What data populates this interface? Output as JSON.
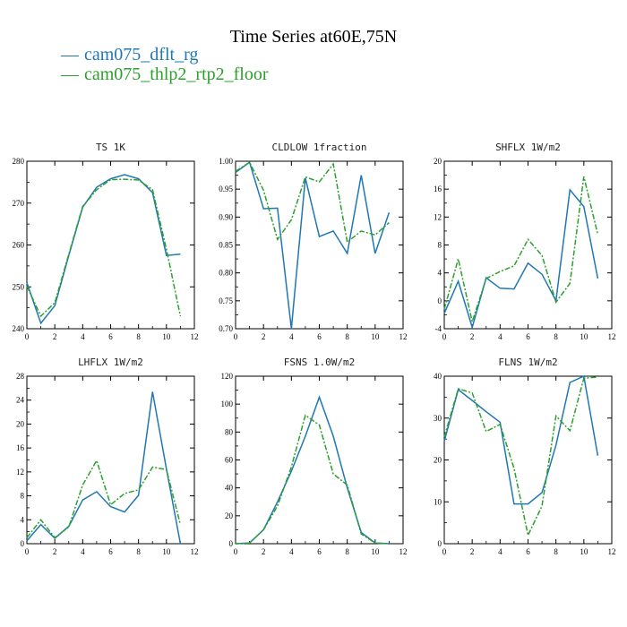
{
  "title": "Time Series at60E,75N",
  "legend": [
    {
      "label": "cam075_dflt_rg",
      "color": "#1f77b4"
    },
    {
      "label": "cam075_thlp2_rtp2_floor",
      "color": "#2ca02c"
    }
  ],
  "chart_data": [
    {
      "type": "line",
      "title": "TS  1K",
      "x": [
        0,
        1,
        2,
        3,
        4,
        5,
        6,
        7,
        8,
        9,
        10,
        11
      ],
      "xlim": [
        0,
        12
      ],
      "ylim": [
        240,
        280
      ],
      "xticks": [
        0,
        2,
        4,
        6,
        8,
        10,
        12
      ],
      "yticks": [
        240,
        250,
        260,
        270,
        280
      ],
      "series": [
        {
          "name": "cam075_dflt_rg",
          "values": [
            251,
            241.3,
            245.5,
            257.5,
            269,
            273.8,
            275.8,
            276.8,
            275.8,
            272.5,
            257.5,
            257.8
          ]
        },
        {
          "name": "cam075_thlp2_rtp2_floor",
          "values": [
            250.2,
            243,
            246.2,
            257.8,
            269.2,
            273.2,
            275.6,
            275.7,
            275.5,
            273.2,
            259,
            243
          ]
        }
      ]
    },
    {
      "type": "line",
      "title": "CLDLOW  1fraction",
      "x": [
        0,
        1,
        2,
        3,
        4,
        5,
        6,
        7,
        8,
        9,
        10,
        11
      ],
      "xlim": [
        0,
        12
      ],
      "ylim": [
        0.7,
        1.0
      ],
      "xticks": [
        0,
        2,
        4,
        6,
        8,
        10,
        12
      ],
      "yticks": [
        "0.70",
        "0.75",
        "0.80",
        "0.85",
        "0.90",
        "0.95",
        "1.00"
      ],
      "series": [
        {
          "name": "cam075_dflt_rg",
          "values": [
            0.98,
            0.998,
            0.915,
            0.916,
            0.7,
            0.97,
            0.865,
            0.875,
            0.835,
            0.975,
            0.835,
            0.908
          ]
        },
        {
          "name": "cam075_thlp2_rtp2_floor",
          "values": [
            0.982,
            0.998,
            0.948,
            0.86,
            0.895,
            0.972,
            0.963,
            0.995,
            0.855,
            0.875,
            0.868,
            0.89
          ]
        }
      ]
    },
    {
      "type": "line",
      "title": "SHFLX  1W/m2",
      "x": [
        0,
        1,
        2,
        3,
        4,
        5,
        6,
        7,
        8,
        9,
        10,
        11
      ],
      "xlim": [
        0,
        12
      ],
      "ylim": [
        -4,
        20
      ],
      "xticks": [
        0,
        2,
        4,
        6,
        8,
        10,
        12
      ],
      "yticks": [
        -4,
        0,
        4,
        8,
        12,
        16,
        20
      ],
      "series": [
        {
          "name": "cam075_dflt_rg",
          "values": [
            -1.8,
            2.8,
            -3.8,
            3.3,
            1.8,
            1.7,
            5.4,
            3.8,
            0,
            15.9,
            13.5,
            3.2
          ]
        },
        {
          "name": "cam075_thlp2_rtp2_floor",
          "values": [
            -1.2,
            6,
            -3,
            3.2,
            4.2,
            5,
            8.8,
            6.5,
            -0.2,
            2.5,
            17.8,
            9.5
          ]
        }
      ]
    },
    {
      "type": "line",
      "title": "LHFLX  1W/m2",
      "x": [
        0,
        1,
        2,
        3,
        4,
        5,
        6,
        7,
        8,
        9,
        10,
        11
      ],
      "xlim": [
        0,
        12
      ],
      "ylim": [
        0,
        28
      ],
      "xticks": [
        0,
        2,
        4,
        6,
        8,
        10,
        12
      ],
      "yticks": [
        0,
        4,
        8,
        12,
        16,
        20,
        24,
        28
      ],
      "series": [
        {
          "name": "cam075_dflt_rg",
          "values": [
            0.5,
            3.2,
            0.9,
            2.9,
            7.3,
            8.7,
            6.2,
            5.3,
            8.1,
            25.4,
            12.5,
            0
          ]
        },
        {
          "name": "cam075_thlp2_rtp2_floor",
          "values": [
            1,
            4,
            1,
            2.8,
            9.8,
            13.9,
            6.5,
            8.4,
            9,
            12.8,
            12.4,
            3.2
          ]
        }
      ]
    },
    {
      "type": "line",
      "title": "FSNS  1.0W/m2",
      "x": [
        0,
        1,
        2,
        3,
        4,
        5,
        6,
        7,
        8,
        9,
        10,
        11
      ],
      "xlim": [
        0,
        12
      ],
      "ylim": [
        0,
        120
      ],
      "xticks": [
        0,
        2,
        4,
        6,
        8,
        10,
        12
      ],
      "yticks": [
        0,
        20,
        40,
        60,
        80,
        100,
        120
      ],
      "series": [
        {
          "name": "cam075_dflt_rg",
          "values": [
            0,
            0.5,
            10,
            30,
            52,
            77,
            105,
            77,
            40,
            8,
            0.5,
            0
          ]
        },
        {
          "name": "cam075_thlp2_rtp2_floor",
          "values": [
            0,
            0.5,
            10,
            27,
            55,
            92,
            85,
            50,
            42,
            7,
            0.5,
            0
          ]
        }
      ]
    },
    {
      "type": "line",
      "title": "FLNS  1W/m2",
      "x": [
        0,
        1,
        2,
        3,
        4,
        5,
        6,
        7,
        8,
        9,
        10,
        11
      ],
      "xlim": [
        0,
        12
      ],
      "ylim": [
        0,
        40
      ],
      "xticks": [
        0,
        2,
        4,
        6,
        8,
        10,
        12
      ],
      "yticks": [
        0,
        10,
        20,
        30,
        40
      ],
      "series": [
        {
          "name": "cam075_dflt_rg",
          "values": [
            24.5,
            36.8,
            34.2,
            31.5,
            29,
            9.5,
            9.5,
            12.2,
            23.5,
            38.5,
            40,
            21
          ]
        },
        {
          "name": "cam075_thlp2_rtp2_floor",
          "values": [
            25.5,
            37,
            36,
            26.8,
            28.5,
            18,
            2,
            9,
            30.5,
            27,
            39.5,
            39.8
          ]
        }
      ]
    }
  ]
}
